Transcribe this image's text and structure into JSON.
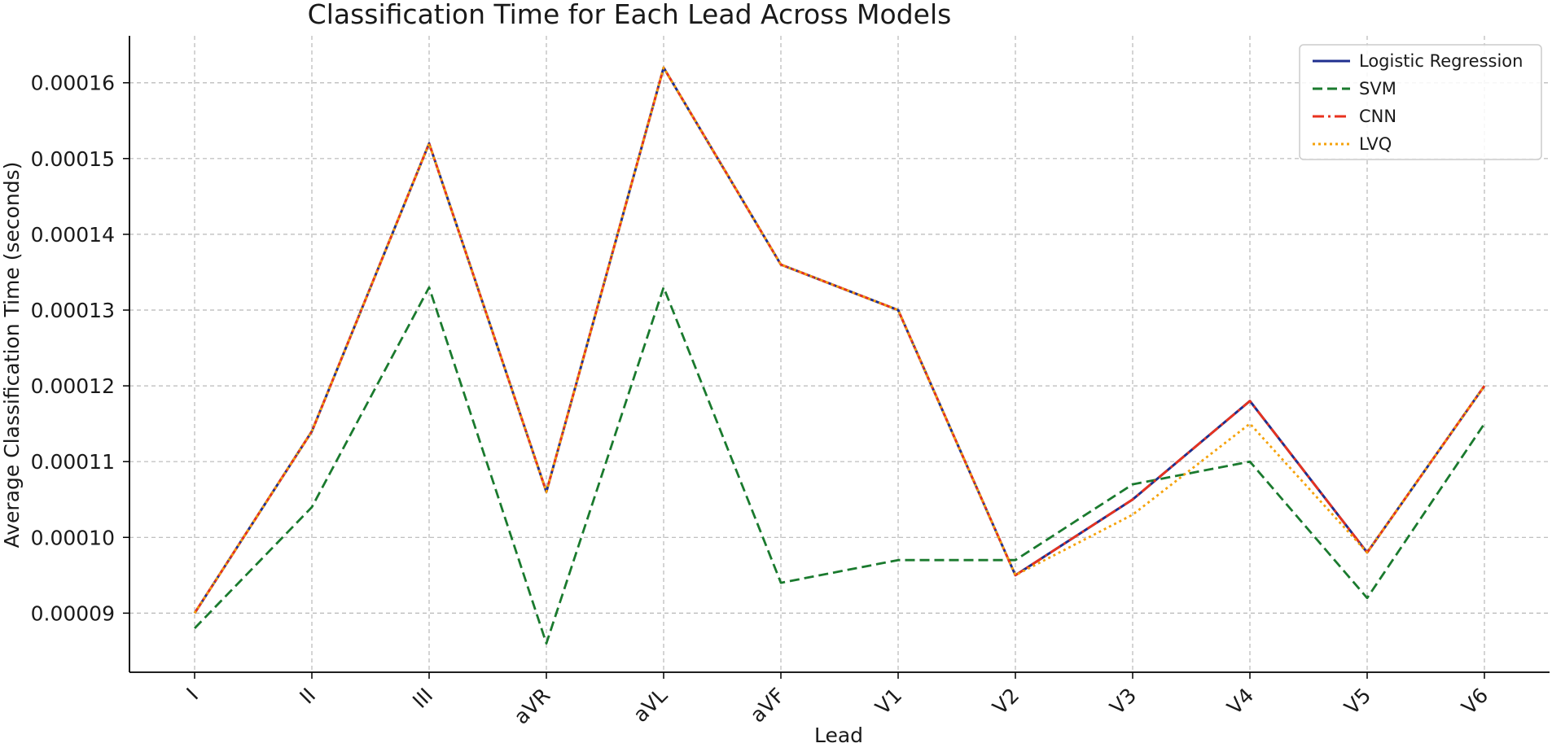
{
  "chart_data": {
    "type": "line",
    "title": "Classification Time for Each Lead Across Models",
    "xlabel": "Lead",
    "ylabel": "Average Classification Time (seconds)",
    "categories": [
      "I",
      "II",
      "III",
      "aVR",
      "aVL",
      "aVF",
      "V1",
      "V2",
      "V3",
      "V4",
      "V5",
      "V6"
    ],
    "ylim": [
      8.22e-05,
      0.0001662
    ],
    "yticks": [
      9e-05,
      0.0001,
      0.00011,
      0.00012,
      0.00013,
      0.00014,
      0.00015,
      0.00016
    ],
    "ytick_labels": [
      "0.00009",
      "0.00010",
      "0.00011",
      "0.00012",
      "0.00013",
      "0.00014",
      "0.00015",
      "0.00016"
    ],
    "grid": true,
    "legend_position": "top-right",
    "series": [
      {
        "name": "Logistic Regression",
        "color": "#1f2f8f",
        "line_style": "solid",
        "values": [
          9e-05,
          0.000114,
          0.000152,
          0.000106,
          0.000162,
          0.000136,
          0.00013,
          9.5e-05,
          0.000105,
          0.000118,
          9.8e-05,
          0.00012
        ]
      },
      {
        "name": "SVM",
        "color": "#1a7a2e",
        "line_style": "dashed",
        "values": [
          8.8e-05,
          0.000104,
          0.000133,
          8.6e-05,
          0.000133,
          9.4e-05,
          9.7e-05,
          9.7e-05,
          0.000107,
          0.00011,
          9.2e-05,
          0.000115
        ]
      },
      {
        "name": "CNN",
        "color": "#e8321e",
        "line_style": "dashdot",
        "values": [
          9e-05,
          0.000114,
          0.000152,
          0.000106,
          0.000162,
          0.000136,
          0.00013,
          9.5e-05,
          0.000105,
          0.000118,
          9.8e-05,
          0.00012
        ]
      },
      {
        "name": "LVQ",
        "color": "#f5a20a",
        "line_style": "dotted",
        "values": [
          9e-05,
          0.000114,
          0.000152,
          0.000106,
          0.000162,
          0.000136,
          0.00013,
          9.5e-05,
          0.000103,
          0.000115,
          9.8e-05,
          0.00012
        ]
      }
    ]
  }
}
